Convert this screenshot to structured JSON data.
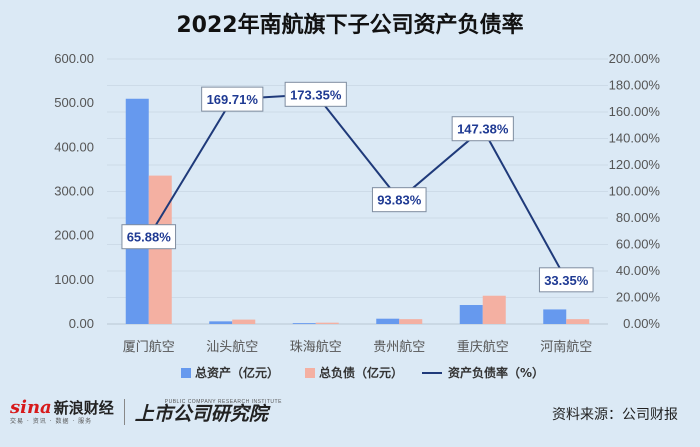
{
  "chart_data": {
    "type": "bar",
    "title": "2022年南航旗下子公司资产负债率",
    "categories": [
      "厦门航空",
      "汕头航空",
      "珠海航空",
      "贵州航空",
      "重庆航空",
      "河南航空"
    ],
    "series": [
      {
        "name": "总资产（亿元）",
        "type": "bar",
        "axis": "left",
        "color": "#6699ee",
        "values": [
          510,
          6,
          2,
          12,
          43,
          33
        ]
      },
      {
        "name": "总负债（亿元）",
        "type": "bar",
        "axis": "left",
        "color": "#f4b0a2",
        "values": [
          336,
          10,
          3,
          11,
          64,
          11
        ]
      },
      {
        "name": "资产负债率（%）",
        "type": "line",
        "axis": "right",
        "color": "#1f3a7a",
        "values": [
          65.88,
          169.71,
          173.35,
          93.83,
          147.38,
          33.35
        ],
        "labels": [
          "65.88%",
          "169.71%",
          "173.35%",
          "93.83%",
          "147.38%",
          "33.35%"
        ]
      }
    ],
    "left_axis": {
      "ylim": [
        0,
        600
      ],
      "ticks": [
        "0.00",
        "100.00",
        "200.00",
        "300.00",
        "400.00",
        "500.00",
        "600.00"
      ]
    },
    "right_axis": {
      "ylim": [
        0,
        200
      ],
      "ticks": [
        "0.00%",
        "20.00%",
        "40.00%",
        "60.00%",
        "80.00%",
        "100.00%",
        "120.00%",
        "140.00%",
        "160.00%",
        "180.00%",
        "200.00%"
      ]
    },
    "grid": true,
    "legend": "bottom"
  },
  "footer": {
    "brand1_sina": "sina",
    "brand1_cn": "新浪财经",
    "brand1_sub": "交易 · 资讯 · 数据 · 服务",
    "brand2_en": "PUBLIC COMPANY RESEARCH INSTITUTE",
    "brand2_cn": "上市公司研究院",
    "source": "资料来源：公司财报"
  }
}
